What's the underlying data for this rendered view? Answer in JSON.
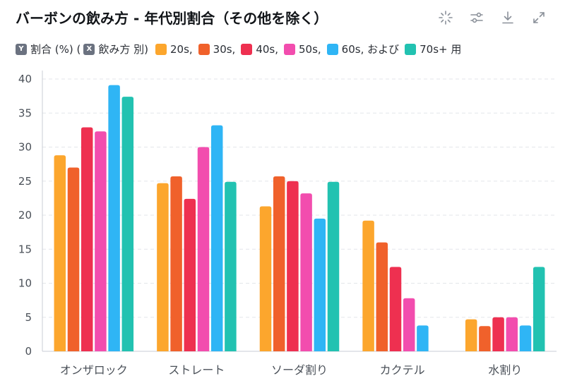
{
  "title": "バーボンの飲み方 - 年代別割合（その他を除く）",
  "toolbar": {
    "icons": [
      "sparkle-icon",
      "sliders-icon",
      "download-icon",
      "expand-icon"
    ]
  },
  "legend_prefix": {
    "y_key": "Y",
    "y_text": "割合 (%) (",
    "x_key": "X",
    "x_text": "飲み方 別)"
  },
  "legend_items": [
    {
      "label": "20s,",
      "color": "#FCA62D"
    },
    {
      "label": "30s,",
      "color": "#F0612B"
    },
    {
      "label": "40s,",
      "color": "#EE3050"
    },
    {
      "label": "50s,",
      "color": "#F24DAE"
    },
    {
      "label": "60s, および",
      "color": "#2FB5F5"
    },
    {
      "label": "70s+ 用",
      "color": "#22C2B1"
    }
  ],
  "chart_data": {
    "type": "bar",
    "title": "バーボンの飲み方 - 年代別割合（その他を除く）",
    "xlabel": "飲み方",
    "ylabel": "割合 (%)",
    "ylim": [
      0,
      40
    ],
    "yticks": [
      0,
      5,
      10,
      15,
      20,
      25,
      30,
      35,
      40
    ],
    "grid": true,
    "legend_position": "top-left",
    "categories": [
      "オンザロック",
      "ストレート",
      "ソーダ割り",
      "カクテル",
      "水割り"
    ],
    "series": [
      {
        "name": "20s",
        "color": "#FCA62D",
        "values": [
          28.8,
          24.7,
          21.3,
          19.2,
          4.7
        ]
      },
      {
        "name": "30s",
        "color": "#F0612B",
        "values": [
          27.0,
          25.7,
          25.7,
          16.0,
          3.7
        ]
      },
      {
        "name": "40s",
        "color": "#EE3050",
        "values": [
          32.9,
          22.4,
          25.0,
          12.4,
          5.0
        ]
      },
      {
        "name": "50s",
        "color": "#F24DAE",
        "values": [
          32.3,
          30.0,
          23.2,
          7.8,
          5.0
        ]
      },
      {
        "name": "60s",
        "color": "#2FB5F5",
        "values": [
          39.1,
          33.2,
          19.5,
          3.8,
          3.8
        ]
      },
      {
        "name": "70s+",
        "color": "#22C2B1",
        "values": [
          37.4,
          24.9,
          24.9,
          0,
          12.4
        ]
      }
    ]
  }
}
